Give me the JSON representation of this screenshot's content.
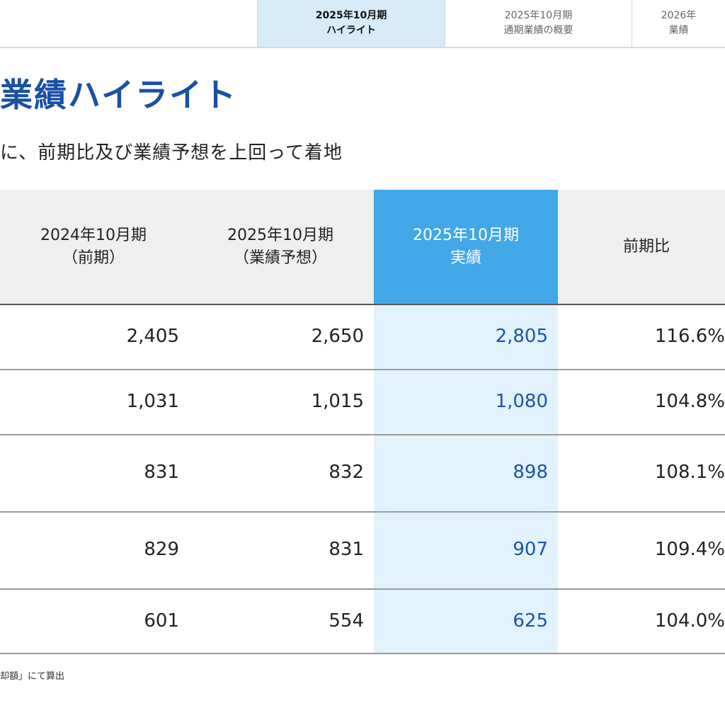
{
  "tabs": [
    {
      "line1": "2025年10月期",
      "line2": "ハイライト",
      "active": true
    },
    {
      "line1": "2025年10月期",
      "line2": "通期業績の概要",
      "active": false
    },
    {
      "line1": "2026年",
      "line2": "業績",
      "active": false
    }
  ],
  "page": {
    "title": "業績ハイライト",
    "subtitle": "に、前期比及び業績予想を上回って着地"
  },
  "table": {
    "headers": [
      {
        "line1": "2024年10月期",
        "line2": "（前期）"
      },
      {
        "line1": "2025年10月期",
        "line2": "（業績予想）"
      },
      {
        "line1": "2025年10月期",
        "line2": "実績"
      },
      {
        "line1": "前期比",
        "line2": ""
      }
    ],
    "rows": [
      {
        "prior": "2,405",
        "forecast": "2,650",
        "actual": "2,805",
        "yoy": "116.6%"
      },
      {
        "prior": "1,031",
        "forecast": "1,015",
        "actual": "1,080",
        "yoy": "104.8%"
      },
      {
        "prior": "831",
        "forecast": "832",
        "actual": "898",
        "yoy": "108.1%"
      },
      {
        "prior": "829",
        "forecast": "831",
        "actual": "907",
        "yoy": "109.4%"
      },
      {
        "prior": "601",
        "forecast": "554",
        "actual": "625",
        "yoy": "104.0%"
      }
    ]
  },
  "footnote": "却額」にて算出",
  "colors": {
    "title": "#1850a4",
    "active_tab_bg": "#d7ebf9",
    "actual_header_bg": "#41a7e6",
    "actual_column_bg": "#e2f2fc",
    "actual_value_text": "#1a56a6"
  }
}
